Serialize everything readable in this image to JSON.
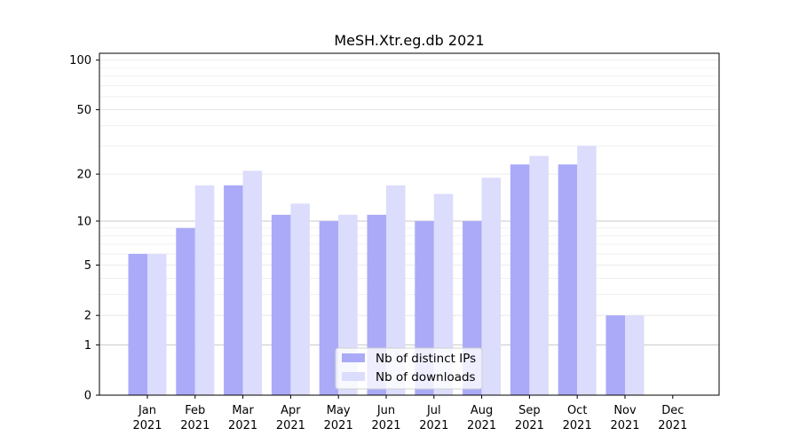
{
  "chart_data": {
    "type": "bar",
    "title": "MeSH.Xtr.eg.db 2021",
    "xlabel": "",
    "ylabel": "",
    "y_scale": "log(1+y)",
    "ylim": [
      0,
      110
    ],
    "y_ticks": [
      0,
      1,
      2,
      5,
      10,
      20,
      50,
      100
    ],
    "grid": true,
    "legend_position": "bottom-center",
    "categories": [
      [
        "Jan",
        "2021"
      ],
      [
        "Feb",
        "2021"
      ],
      [
        "Mar",
        "2021"
      ],
      [
        "Apr",
        "2021"
      ],
      [
        "May",
        "2021"
      ],
      [
        "Jun",
        "2021"
      ],
      [
        "Jul",
        "2021"
      ],
      [
        "Aug",
        "2021"
      ],
      [
        "Sep",
        "2021"
      ],
      [
        "Oct",
        "2021"
      ],
      [
        "Nov",
        "2021"
      ],
      [
        "Dec",
        "2021"
      ]
    ],
    "series": [
      {
        "name": "Nb of distinct IPs",
        "color": "#aaaaf8",
        "values": [
          6,
          9,
          17,
          11,
          10,
          11,
          10,
          10,
          23,
          23,
          2,
          0
        ]
      },
      {
        "name": "Nb of downloads",
        "color": "#dcdcfc",
        "values": [
          6,
          17,
          21,
          13,
          11,
          17,
          15,
          19,
          26,
          30,
          2,
          0
        ]
      }
    ]
  }
}
